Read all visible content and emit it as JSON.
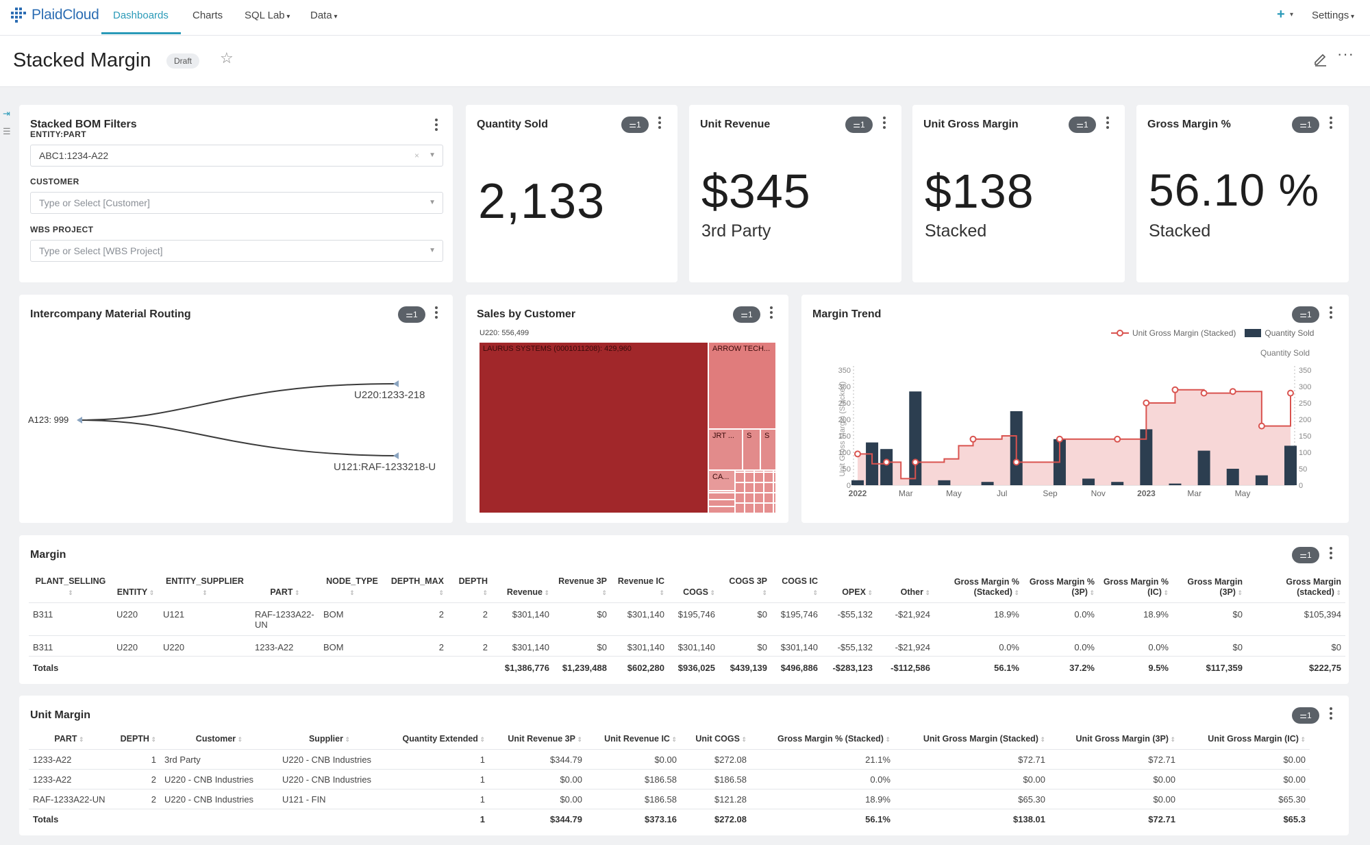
{
  "nav": {
    "brand": "PlaidCloud",
    "items": [
      {
        "label": "Dashboards",
        "active": true
      },
      {
        "label": "Charts"
      },
      {
        "label": "SQL Lab",
        "dropdown": true
      },
      {
        "label": "Data",
        "dropdown": true
      }
    ],
    "plus": "+",
    "settings": "Settings"
  },
  "header": {
    "title": "Stacked Margin",
    "badge": "Draft"
  },
  "filters": {
    "title": "Stacked BOM Filters",
    "fields": [
      {
        "label": "ENTITY:PART",
        "value": "ABC1:1234-A22"
      },
      {
        "label": "CUSTOMER",
        "placeholder": "Type or Select [Customer]"
      },
      {
        "label": "WBS PROJECT",
        "placeholder": "Type or Select [WBS Project]"
      }
    ]
  },
  "filter_pill": "1",
  "kpis": [
    {
      "title": "Quantity Sold",
      "value": "2,133",
      "subtitle": ""
    },
    {
      "title": "Unit Revenue",
      "value": "$345",
      "subtitle": "3rd Party"
    },
    {
      "title": "Unit Gross Margin",
      "value": "$138",
      "subtitle": "Stacked"
    },
    {
      "title": "Gross Margin %",
      "value": "56.10 %",
      "subtitle": "Stacked"
    }
  ],
  "routing": {
    "title": "Intercompany Material Routing",
    "source": "A123: 999",
    "targets": [
      "U220:1233-218",
      "U121:RAF-1233218-U"
    ]
  },
  "sales": {
    "title": "Sales by Customer",
    "header": "U220: 556,499",
    "cells": [
      {
        "label": "LAURUS SYSTEMS (0001011208): 429,960"
      },
      {
        "label": "ARROW TECH..."
      },
      {
        "label": "JRT ..."
      },
      {
        "label": "S"
      },
      {
        "label": "S"
      },
      {
        "label": "CA..."
      }
    ],
    "colors": {
      "main": "#a1272a",
      "secondary": "#e07c7c"
    }
  },
  "trend": {
    "title": "Margin Trend",
    "legend_line": "Unit Gross Margin (Stacked)",
    "legend_bar": "Quantity Sold",
    "right_axis_label": "Quantity Sold",
    "left_axis_label": "Unit Gross Margin (Stacked)",
    "colors": {
      "line": "#d9534f",
      "area": "#f6d0d0",
      "bar": "#2c3e50"
    }
  },
  "chart_data": {
    "type": "bar",
    "title": "Margin Trend",
    "x_ticks": [
      "2022",
      "Mar",
      "May",
      "Jul",
      "Sep",
      "Nov",
      "2023",
      "Mar",
      "May"
    ],
    "y_ticks": [
      0,
      50,
      100,
      150,
      200,
      250,
      300,
      350
    ],
    "ylim": [
      0,
      350
    ],
    "series": [
      {
        "name": "Quantity Sold",
        "kind": "bar",
        "values": [
          15,
          130,
          110,
          0,
          285,
          0,
          15,
          0,
          0,
          10,
          0,
          225,
          0,
          0,
          140,
          0,
          20,
          0,
          10,
          0,
          170,
          0,
          5,
          0,
          105,
          0,
          50,
          0,
          30,
          0,
          120
        ]
      },
      {
        "name": "Unit Gross Margin (Stacked)",
        "kind": "line",
        "values": [
          95,
          65,
          70,
          20,
          70,
          70,
          80,
          120,
          140,
          140,
          150,
          70,
          70,
          70,
          140,
          140,
          140,
          140,
          140,
          140,
          250,
          250,
          290,
          290,
          280,
          280,
          285,
          285,
          180,
          180,
          280
        ]
      }
    ]
  },
  "margin": {
    "title": "Margin",
    "columns": [
      {
        "label": "PLANT_SELLING",
        "w": 122,
        "align": "l"
      },
      {
        "label": "ENTITY",
        "w": 68,
        "align": "l"
      },
      {
        "label": "ENTITY_SUPPLIER",
        "w": 134,
        "align": "l"
      },
      {
        "label": "PART",
        "w": 100,
        "align": "l"
      },
      {
        "label": "NODE_TYPE",
        "w": 96,
        "align": "l"
      },
      {
        "label": "DEPTH_MAX",
        "w": 92,
        "align": "r"
      },
      {
        "label": "DEPTH",
        "w": 64,
        "align": "r"
      },
      {
        "label": "Revenue",
        "w": 90,
        "align": "r"
      },
      {
        "label": "Revenue 3P",
        "w": 84,
        "align": "r"
      },
      {
        "label": "Revenue IC",
        "w": 84,
        "align": "r"
      },
      {
        "label": "COGS",
        "w": 74,
        "align": "r"
      },
      {
        "label": "COGS 3P",
        "w": 76,
        "align": "r"
      },
      {
        "label": "COGS IC",
        "w": 74,
        "align": "r"
      },
      {
        "label": "OPEX",
        "w": 80,
        "align": "r"
      },
      {
        "label": "Other",
        "w": 84,
        "align": "r"
      },
      {
        "label": "Gross Margin % (Stacked)",
        "w": 130,
        "align": "r"
      },
      {
        "label": "Gross Margin % (3P)",
        "w": 110,
        "align": "r"
      },
      {
        "label": "Gross Margin % (IC)",
        "w": 108,
        "align": "r"
      },
      {
        "label": "Gross Margin (3P)",
        "w": 108,
        "align": "r"
      },
      {
        "label": "Gross Margin (stacked)",
        "w": 144,
        "align": "r"
      }
    ],
    "rows": [
      [
        "B311",
        "U220",
        "U121",
        "RAF-1233A22-UN",
        "BOM",
        "2",
        "2",
        "$301,140",
        "$0",
        "$301,140",
        "$195,746",
        "$0",
        "$195,746",
        "-$55,132",
        "-$21,924",
        "18.9%",
        "0.0%",
        "18.9%",
        "$0",
        "$105,394"
      ],
      [
        "B311",
        "U220",
        "U220",
        "1233-A22",
        "BOM",
        "2",
        "2",
        "$301,140",
        "$0",
        "$301,140",
        "$301,140",
        "$0",
        "$301,140",
        "-$55,132",
        "-$21,924",
        "0.0%",
        "0.0%",
        "0.0%",
        "$0",
        "$0"
      ]
    ],
    "totals": [
      "Totals",
      "",
      "",
      "",
      "",
      "",
      "",
      "$1,386,776",
      "$1,239,488",
      "$602,280",
      "$936,025",
      "$439,139",
      "$496,886",
      "-$283,123",
      "-$112,586",
      "56.1%",
      "37.2%",
      "9.5%",
      "$117,359",
      "$222,75"
    ]
  },
  "unit_margin": {
    "title": "Unit Margin",
    "columns": [
      {
        "label": "PART",
        "w": 118,
        "align": "l"
      },
      {
        "label": "DEPTH",
        "w": 74,
        "align": "r"
      },
      {
        "label": "Customer",
        "w": 172,
        "align": "l"
      },
      {
        "label": "Supplier",
        "w": 150,
        "align": "l"
      },
      {
        "label": "Quantity Extended",
        "w": 158,
        "align": "r"
      },
      {
        "label": "Unit Revenue 3P",
        "w": 142,
        "align": "r"
      },
      {
        "label": "Unit Revenue IC",
        "w": 138,
        "align": "r"
      },
      {
        "label": "Unit COGS",
        "w": 102,
        "align": "r"
      },
      {
        "label": "Gross Margin % (Stacked)",
        "w": 210,
        "align": "r"
      },
      {
        "label": "Unit Gross Margin (Stacked)",
        "w": 226,
        "align": "r"
      },
      {
        "label": "Unit Gross Margin (3P)",
        "w": 190,
        "align": "r"
      },
      {
        "label": "Unit Gross Margin (IC)",
        "w": 190,
        "align": "r"
      }
    ],
    "rows": [
      [
        "1233-A22",
        "1",
        "3rd Party",
        "U220 - CNB Industries",
        "1",
        "$344.79",
        "$0.00",
        "$272.08",
        "21.1%",
        "$72.71",
        "$72.71",
        "$0.00"
      ],
      [
        "1233-A22",
        "2",
        "U220 - CNB Industries",
        "U220 - CNB Industries",
        "1",
        "$0.00",
        "$186.58",
        "$186.58",
        "0.0%",
        "$0.00",
        "$0.00",
        "$0.00"
      ],
      [
        "RAF-1233A22-UN",
        "2",
        "U220 - CNB Industries",
        "U121 - FIN",
        "1",
        "$0.00",
        "$186.58",
        "$121.28",
        "18.9%",
        "$65.30",
        "$0.00",
        "$65.30"
      ]
    ],
    "totals": [
      "Totals",
      "",
      "",
      "",
      "1",
      "$344.79",
      "$373.16",
      "$272.08",
      "56.1%",
      "$138.01",
      "$72.71",
      "$65.3"
    ]
  }
}
